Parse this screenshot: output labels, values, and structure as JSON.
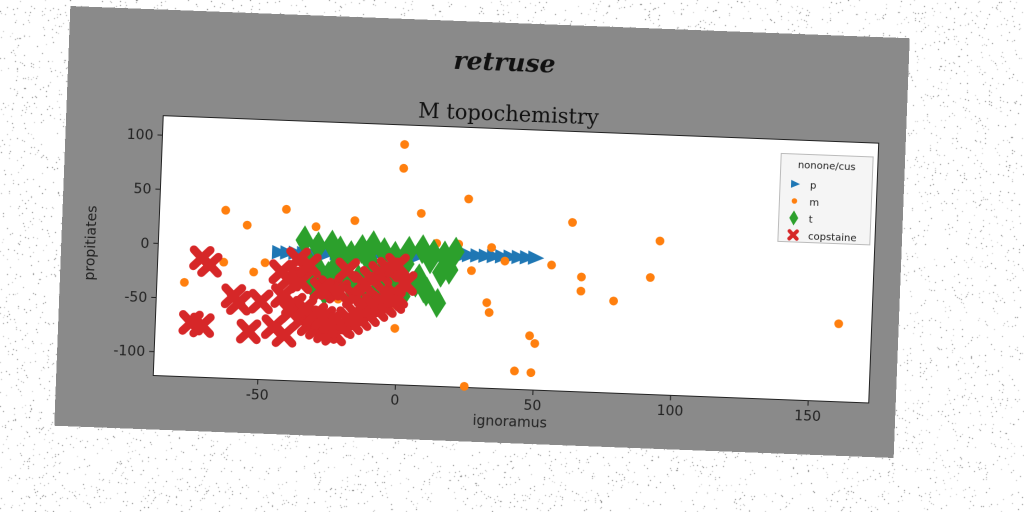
{
  "chart_data": {
    "type": "scatter",
    "suptitle": "retruse",
    "title": "M topochemistry",
    "xlabel": "ignoramus",
    "ylabel": "propitiates",
    "xlim": [
      -88,
      172
    ],
    "ylim": [
      -122,
      118
    ],
    "xticks": [
      -50,
      0,
      50,
      100,
      150
    ],
    "yticks": [
      100,
      50,
      0,
      -50,
      -100
    ],
    "grid": false,
    "legend": {
      "title": "nonone/cus",
      "position": "top-right"
    },
    "series": [
      {
        "name": "p",
        "marker": "triangle-right",
        "color": "#1f77b4",
        "x": [
          -44,
          -41,
          -38,
          -35,
          -32,
          -29,
          -26,
          -23,
          -20,
          -17,
          -14,
          -11,
          -8,
          -5,
          -2,
          1,
          4,
          7,
          10,
          13,
          16,
          19,
          22,
          25,
          28,
          31,
          34,
          37,
          40,
          43,
          46,
          49
        ],
        "y": [
          -4,
          -4,
          -4,
          -4,
          -4,
          -4,
          -3,
          -3,
          -3,
          -3,
          -3,
          -3,
          -2,
          -2,
          -2,
          -2,
          -2,
          -2,
          -1,
          -1,
          -1,
          -1,
          -1,
          0,
          0,
          0,
          0,
          0,
          0,
          0,
          0,
          0
        ]
      },
      {
        "name": "m",
        "marker": "circle",
        "color": "#ff7f0e",
        "x": [
          0,
          0,
          -64,
          -56,
          -42,
          -31,
          -17,
          7,
          24,
          33,
          13,
          3,
          21,
          10,
          38,
          26,
          55,
          62,
          66,
          66,
          78,
          91,
          94,
          160,
          -78,
          -64,
          -53,
          -49,
          -28,
          -22,
          -15,
          -10,
          -3,
          -1,
          32,
          33,
          48,
          50,
          43,
          49,
          25
        ],
        "y": [
          100,
          78,
          33,
          20,
          36,
          21,
          28,
          37,
          52,
          8,
          10,
          3,
          10,
          -2,
          -4,
          -14,
          -6,
          34,
          -16,
          -29,
          -37,
          -14,
          20,
          -50,
          -35,
          -15,
          -23,
          -14,
          -28,
          -45,
          -41,
          -49,
          -54,
          -70,
          -43,
          -52,
          -72,
          -79,
          -105,
          -106,
          -121
        ]
      },
      {
        "name": "t",
        "marker": "diamond",
        "color": "#2ca02c",
        "x": [
          -35,
          -30,
          -25,
          -22,
          -18,
          -14,
          -10,
          -6,
          -2,
          3,
          8,
          12,
          16,
          20,
          -33,
          -29,
          -24,
          -20,
          -15,
          -11,
          -7,
          -3,
          2,
          7,
          11,
          15,
          -31,
          -27,
          -22,
          -17,
          -12,
          -8,
          -4,
          1,
          6,
          10,
          14,
          -34,
          -26,
          -18,
          -9,
          0,
          9,
          18
        ],
        "y": [
          8,
          3,
          5,
          0,
          -4,
          2,
          6,
          0,
          -3,
          2,
          4,
          0,
          -1,
          3,
          -14,
          -21,
          -18,
          -12,
          -26,
          -9,
          -20,
          -15,
          -10,
          -23,
          -5,
          -17,
          -34,
          -38,
          -29,
          -33,
          -41,
          -36,
          -30,
          -40,
          -27,
          -35,
          -45,
          -26,
          -24,
          -31,
          -22,
          -28,
          -32,
          -14
        ]
      },
      {
        "name": "copstaine",
        "marker": "x",
        "color": "#d62728",
        "x": [
          -72,
          -69,
          -75,
          -71,
          -58,
          -60,
          -54,
          -50,
          -45,
          -41,
          -39,
          -35,
          -32,
          -29,
          -26,
          -23,
          -20,
          -17,
          -14,
          -11,
          -8,
          -5,
          -2,
          -38,
          -34,
          -30,
          -27,
          -24,
          -21,
          -18,
          -15,
          -12,
          -9,
          -6,
          -3,
          -1,
          -43,
          -40,
          -36,
          -25,
          -22,
          -19,
          -16,
          -13,
          -10,
          -7,
          -4,
          -1,
          2,
          -42,
          -37,
          -33,
          -28
        ],
        "y": [
          -12,
          -18,
          -72,
          -74,
          -52,
          -46,
          -78,
          -50,
          -73,
          -80,
          -58,
          -65,
          -69,
          -72,
          -75,
          -77,
          -70,
          -66,
          -62,
          -58,
          -53,
          -49,
          -45,
          -52,
          -55,
          -60,
          -63,
          -66,
          -69,
          -63,
          -59,
          -55,
          -50,
          -47,
          -43,
          -40,
          -22,
          -28,
          -30,
          -35,
          -38,
          -18,
          -42,
          -30,
          -25,
          -20,
          -16,
          -12,
          -28,
          -44,
          -10,
          -15,
          -37
        ]
      }
    ]
  }
}
